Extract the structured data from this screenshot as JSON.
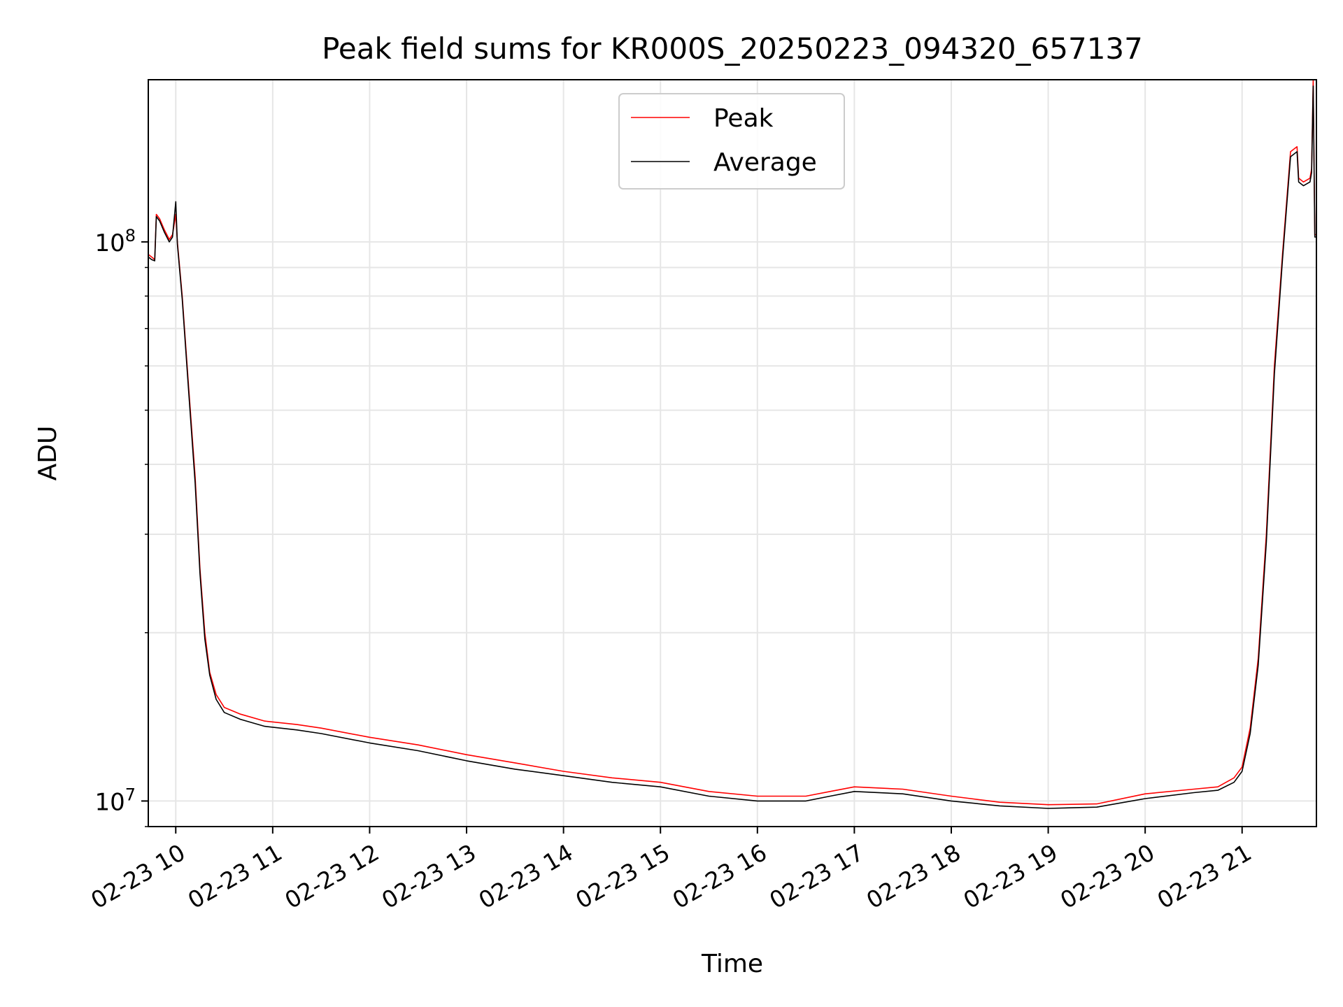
{
  "chart_data": {
    "type": "line",
    "title": "Peak field sums for KR000S_20250223_094320_657137",
    "xlabel": "Time",
    "ylabel": "ADU",
    "y_scale": "log",
    "xlim": [
      "2025-02-23 09:43",
      "2025-02-23 21:46"
    ],
    "ylim": [
      9000000,
      195000000
    ],
    "x_tick_labels": [
      "02-23 10",
      "02-23 11",
      "02-23 12",
      "02-23 13",
      "02-23 14",
      "02-23 15",
      "02-23 16",
      "02-23 17",
      "02-23 18",
      "02-23 19",
      "02-23 20",
      "02-23 21"
    ],
    "x_tick_times": [
      "2025-02-23 10:00",
      "2025-02-23 11:00",
      "2025-02-23 12:00",
      "2025-02-23 13:00",
      "2025-02-23 14:00",
      "2025-02-23 15:00",
      "2025-02-23 16:00",
      "2025-02-23 17:00",
      "2025-02-23 18:00",
      "2025-02-23 19:00",
      "2025-02-23 20:00",
      "2025-02-23 21:00"
    ],
    "y_ticks": [
      {
        "value": 10000000,
        "base": "10",
        "exp": "7"
      },
      {
        "value": 100000000,
        "base": "10",
        "exp": "8"
      }
    ],
    "grid": true,
    "legend_position": "top-center",
    "series": [
      {
        "name": "Peak",
        "color": "#ff0000",
        "x": [
          "2025-02-23 09:43",
          "2025-02-23 09:45",
          "2025-02-23 09:47",
          "2025-02-23 09:48",
          "2025-02-23 09:50",
          "2025-02-23 09:53",
          "2025-02-23 09:56",
          "2025-02-23 09:58",
          "2025-02-23 10:00",
          "2025-02-23 10:01",
          "2025-02-23 10:04",
          "2025-02-23 10:08",
          "2025-02-23 10:12",
          "2025-02-23 10:15",
          "2025-02-23 10:18",
          "2025-02-23 10:21",
          "2025-02-23 10:25",
          "2025-02-23 10:30",
          "2025-02-23 10:40",
          "2025-02-23 10:55",
          "2025-02-23 11:15",
          "2025-02-23 11:30",
          "2025-02-23 12:00",
          "2025-02-23 12:30",
          "2025-02-23 13:00",
          "2025-02-23 13:30",
          "2025-02-23 14:00",
          "2025-02-23 14:30",
          "2025-02-23 15:00",
          "2025-02-23 15:30",
          "2025-02-23 16:00",
          "2025-02-23 16:30",
          "2025-02-23 16:45",
          "2025-02-23 17:00",
          "2025-02-23 17:30",
          "2025-02-23 18:00",
          "2025-02-23 18:30",
          "2025-02-23 19:00",
          "2025-02-23 19:30",
          "2025-02-23 20:00",
          "2025-02-23 20:30",
          "2025-02-23 20:45",
          "2025-02-23 20:55",
          "2025-02-23 21:00",
          "2025-02-23 21:05",
          "2025-02-23 21:10",
          "2025-02-23 21:15",
          "2025-02-23 21:20",
          "2025-02-23 21:25",
          "2025-02-23 21:30",
          "2025-02-23 21:34",
          "2025-02-23 21:35",
          "2025-02-23 21:38",
          "2025-02-23 21:42",
          "2025-02-23 21:43",
          "2025-02-23 21:44",
          "2025-02-23 21:45",
          "2025-02-23 21:46"
        ],
        "y": [
          95000000,
          94000000,
          93000000,
          112000000,
          110000000,
          105000000,
          101000000,
          103000000,
          112000000,
          100000000,
          80000000,
          55000000,
          38000000,
          26000000,
          20000000,
          17000000,
          15500000,
          14700000,
          14300000,
          13900000,
          13700000,
          13500000,
          13000000,
          12600000,
          12100000,
          11700000,
          11300000,
          11000000,
          10800000,
          10400000,
          10200000,
          10200000,
          10400000,
          10600000,
          10500000,
          10200000,
          9950000,
          9850000,
          9880000,
          10300000,
          10500000,
          10600000,
          11000000,
          11500000,
          13500000,
          18000000,
          30000000,
          60000000,
          95000000,
          145000000,
          148000000,
          130000000,
          128000000,
          130000000,
          135000000,
          195000000,
          103000000,
          103000000
        ]
      },
      {
        "name": "Average",
        "color": "#000000",
        "x": [
          "2025-02-23 09:43",
          "2025-02-23 09:45",
          "2025-02-23 09:47",
          "2025-02-23 09:48",
          "2025-02-23 09:50",
          "2025-02-23 09:53",
          "2025-02-23 09:56",
          "2025-02-23 09:58",
          "2025-02-23 10:00",
          "2025-02-23 10:01",
          "2025-02-23 10:04",
          "2025-02-23 10:08",
          "2025-02-23 10:12",
          "2025-02-23 10:15",
          "2025-02-23 10:18",
          "2025-02-23 10:21",
          "2025-02-23 10:25",
          "2025-02-23 10:30",
          "2025-02-23 10:40",
          "2025-02-23 10:55",
          "2025-02-23 11:15",
          "2025-02-23 11:30",
          "2025-02-23 12:00",
          "2025-02-23 12:30",
          "2025-02-23 13:00",
          "2025-02-23 13:30",
          "2025-02-23 14:00",
          "2025-02-23 14:30",
          "2025-02-23 15:00",
          "2025-02-23 15:30",
          "2025-02-23 16:00",
          "2025-02-23 16:30",
          "2025-02-23 16:45",
          "2025-02-23 17:00",
          "2025-02-23 17:30",
          "2025-02-23 18:00",
          "2025-02-23 18:30",
          "2025-02-23 19:00",
          "2025-02-23 19:30",
          "2025-02-23 20:00",
          "2025-02-23 20:30",
          "2025-02-23 20:45",
          "2025-02-23 20:55",
          "2025-02-23 21:00",
          "2025-02-23 21:05",
          "2025-02-23 21:10",
          "2025-02-23 21:15",
          "2025-02-23 21:20",
          "2025-02-23 21:25",
          "2025-02-23 21:30",
          "2025-02-23 21:34",
          "2025-02-23 21:35",
          "2025-02-23 21:38",
          "2025-02-23 21:42",
          "2025-02-23 21:43",
          "2025-02-23 21:44",
          "2025-02-23 21:45",
          "2025-02-23 21:46"
        ],
        "y": [
          94000000,
          93000000,
          92500000,
          111000000,
          109000000,
          104000000,
          100000000,
          102000000,
          118000000,
          99000000,
          79000000,
          54000000,
          37000000,
          25500000,
          19500000,
          16800000,
          15200000,
          14400000,
          14000000,
          13600000,
          13400000,
          13200000,
          12700000,
          12300000,
          11800000,
          11400000,
          11100000,
          10800000,
          10600000,
          10200000,
          10000000,
          10000000,
          10200000,
          10400000,
          10300000,
          10000000,
          9800000,
          9700000,
          9750000,
          10100000,
          10350000,
          10450000,
          10800000,
          11300000,
          13200000,
          17500000,
          29000000,
          58000000,
          93000000,
          142000000,
          145000000,
          128000000,
          126000000,
          128000000,
          133000000,
          190000000,
          102000000,
          102000000
        ]
      }
    ]
  }
}
